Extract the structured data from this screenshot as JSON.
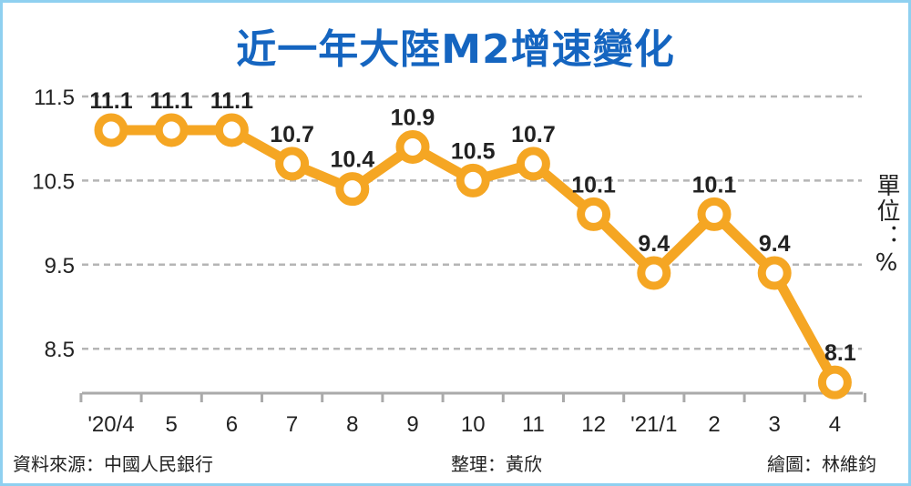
{
  "chart_data": {
    "type": "line",
    "title": "近一年大陸M2增速變化",
    "unit_label": "單位：%",
    "categories": [
      "'20/4",
      "5",
      "6",
      "7",
      "8",
      "9",
      "10",
      "11",
      "12",
      "'21/1",
      "2",
      "3",
      "4"
    ],
    "values": [
      11.1,
      11.1,
      11.1,
      10.7,
      10.4,
      10.9,
      10.5,
      10.7,
      10.1,
      9.4,
      10.1,
      9.4,
      8.1
    ],
    "data_labels": [
      "11.1",
      "11.1",
      "11.1",
      "10.7",
      "10.4",
      "10.9",
      "10.5",
      "10.7",
      "10.1",
      "9.4",
      "10.1",
      "9.4",
      "8.1"
    ],
    "yticks": [
      11.5,
      10.5,
      9.5,
      8.5
    ],
    "ytick_labels": [
      "11.5",
      "10.5",
      "9.5",
      "8.5"
    ],
    "ylim": [
      8.0,
      11.5
    ],
    "grid": "horizontal dashed",
    "line_color": "#f5a623",
    "title_color": "#1565c0"
  },
  "footer": {
    "source": "資料來源：中國人民銀行",
    "editor": "整理：黃欣",
    "illustrator": "繪圖：林維鈞"
  }
}
